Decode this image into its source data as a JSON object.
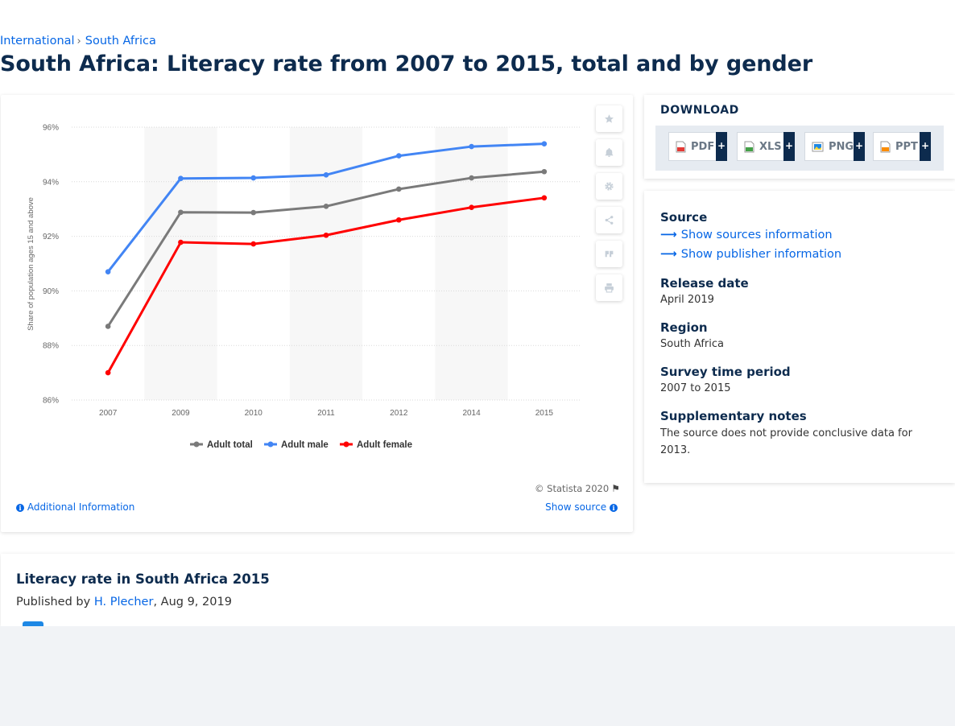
{
  "breadcrumb": {
    "items": [
      "International",
      "South Africa"
    ]
  },
  "page_title": "South Africa: Literacy rate from 2007 to 2015, total and by gender",
  "chart_data": {
    "type": "line",
    "title": "",
    "xlabel": "",
    "ylabel": "Share of population ages 15 and above",
    "categories": [
      "2007",
      "2009",
      "2010",
      "2011",
      "2012",
      "2014",
      "2015"
    ],
    "y_ticks": [
      "96%",
      "94%",
      "92%",
      "90%",
      "88%",
      "86%"
    ],
    "ylim": [
      86,
      96
    ],
    "grid": true,
    "legend_position": "bottom",
    "series": [
      {
        "name": "Adult total",
        "color": "#7a7a7a",
        "values": [
          88.7,
          92.88,
          92.87,
          93.1,
          93.73,
          94.14,
          94.37
        ]
      },
      {
        "name": "Adult male",
        "color": "#4285f4",
        "values": [
          90.7,
          94.12,
          94.14,
          94.25,
          94.95,
          95.29,
          95.39
        ]
      },
      {
        "name": "Adult female",
        "color": "#ff0000",
        "values": [
          87.0,
          91.78,
          91.72,
          92.04,
          92.6,
          93.06,
          93.41
        ]
      }
    ]
  },
  "chart_card": {
    "copyright": "© Statista 2020",
    "additional_info": "Additional Information",
    "show_source": "Show source",
    "toolbar": [
      "star-icon",
      "bell-icon",
      "gear-icon",
      "share-icon",
      "quote-icon",
      "print-icon"
    ]
  },
  "download": {
    "title": "DOWNLOAD",
    "buttons": [
      {
        "label": "PDF",
        "icon": "pdf-file-icon",
        "color": "#e53935"
      },
      {
        "label": "XLS",
        "icon": "xls-file-icon",
        "color": "#43a047"
      },
      {
        "label": "PNG",
        "icon": "png-file-icon",
        "color": "#1e88e5"
      },
      {
        "label": "PPT",
        "icon": "ppt-file-icon",
        "color": "#fb8c00"
      }
    ],
    "plus": "+"
  },
  "meta": {
    "source_label": "Source",
    "show_sources": "Show sources information",
    "show_publisher": "Show publisher information",
    "release_label": "Release date",
    "release_value": "April 2019",
    "region_label": "Region",
    "region_value": "South Africa",
    "survey_label": "Survey time period",
    "survey_value": "2007 to 2015",
    "notes_label": "Supplementary notes",
    "notes_value": "The source does not provide conclusive data for 2013."
  },
  "bottom": {
    "title": "Literacy rate in South Africa 2015",
    "published_by": "Published by",
    "author": "H. Plecher",
    "date": ", Aug 9, 2019"
  }
}
